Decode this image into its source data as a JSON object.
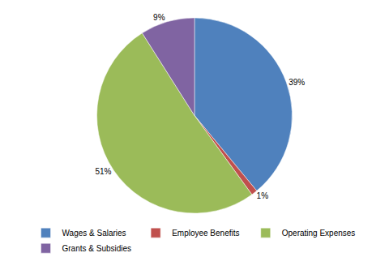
{
  "chart_data": {
    "type": "pie",
    "categories": [
      "Wages & Salaries",
      "Employee Benefits",
      "Operating Expenses",
      "Grants & Subsidies"
    ],
    "values": [
      39,
      1,
      51,
      9
    ],
    "value_labels": [
      "39%",
      "1%",
      "51%",
      "9%"
    ],
    "colors": [
      "#4f81bd",
      "#c0504d",
      "#9bbb59",
      "#8064a2"
    ],
    "data_labels": true,
    "legend": "bottom"
  }
}
